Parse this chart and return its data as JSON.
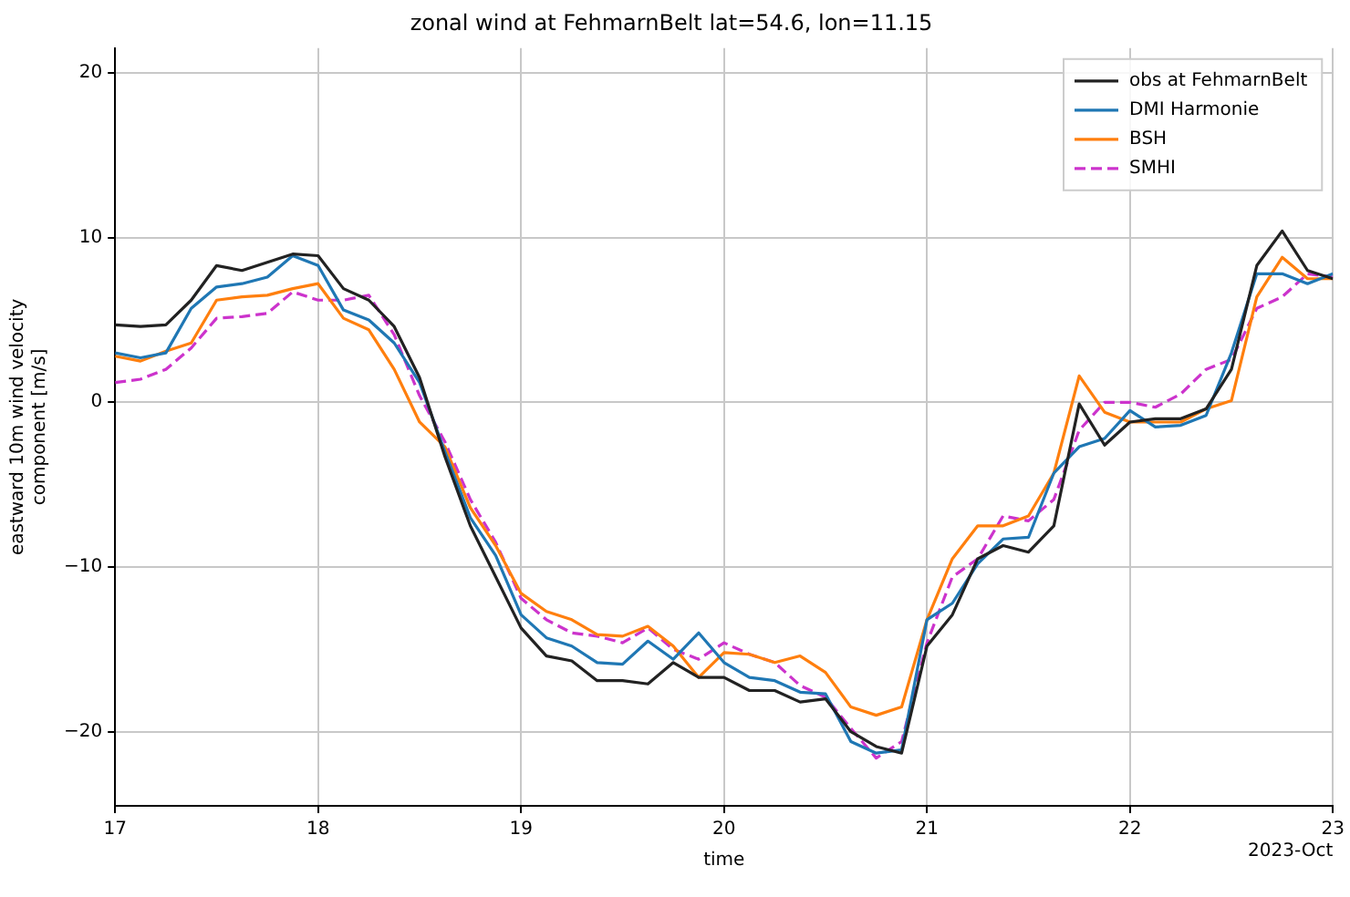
{
  "chart_data": {
    "type": "line",
    "title": "zonal wind at FehmarnBelt lat=54.6, lon=11.15",
    "xlabel": "time",
    "ylabel": "eastward 10m wind velocity\ncomponent [m/s]",
    "annotations": [
      "2023-Oct"
    ],
    "x": [
      17,
      17.125,
      17.25,
      17.375,
      17.5,
      17.625,
      17.75,
      17.875,
      18,
      18.125,
      18.25,
      18.375,
      18.5,
      18.625,
      18.75,
      18.875,
      19,
      19.125,
      19.25,
      19.375,
      19.5,
      19.625,
      19.75,
      19.875,
      20,
      20.125,
      20.25,
      20.375,
      20.5,
      20.625,
      20.75,
      20.875,
      21,
      21.125,
      21.25,
      21.375,
      21.5,
      21.625,
      21.75,
      21.875,
      22,
      22.125,
      22.25,
      22.375,
      22.5,
      22.625,
      22.75,
      22.875,
      23
    ],
    "series": [
      {
        "name": "obs at FehmarnBelt",
        "color": "#222222",
        "line_style": "solid",
        "values": [
          4.7,
          4.6,
          4.7,
          6.2,
          8.3,
          8.0,
          8.5,
          9.0,
          8.9,
          6.9,
          6.2,
          4.6,
          1.5,
          -3.3,
          -7.5,
          -10.6,
          -13.7,
          -15.4,
          -15.7,
          -16.9,
          -16.9,
          -17.1,
          -15.8,
          -16.7,
          -16.7,
          -17.5,
          -17.5,
          -18.2,
          -18.0,
          -20.0,
          -20.9,
          -21.3,
          -14.8,
          -12.9,
          -9.5,
          -8.7,
          -9.1,
          -7.5,
          -0.1,
          -2.6,
          -1.2,
          -1.0,
          -1.0,
          -0.4,
          2.0,
          8.3,
          10.4,
          8.0,
          7.5
        ]
      },
      {
        "name": "DMI Harmonie",
        "color": "#1f77b4",
        "line_style": "solid",
        "values": [
          3.0,
          2.7,
          3.0,
          5.7,
          7.0,
          7.2,
          7.6,
          8.9,
          8.3,
          5.6,
          5.0,
          3.6,
          1.2,
          -3.0,
          -7.0,
          -9.3,
          -12.9,
          -14.3,
          -14.8,
          -15.8,
          -15.9,
          -14.5,
          -15.6,
          -14.0,
          -15.8,
          -16.7,
          -16.9,
          -17.6,
          -17.7,
          -20.6,
          -21.3,
          -21.1,
          -13.2,
          -12.2,
          -9.8,
          -8.3,
          -8.2,
          -4.3,
          -2.7,
          -2.2,
          -0.5,
          -1.5,
          -1.4,
          -0.8,
          3.0,
          7.8,
          7.8,
          7.2,
          7.8
        ]
      },
      {
        "name": "BSH",
        "color": "#ff7f0e",
        "line_style": "solid",
        "values": [
          2.8,
          2.5,
          3.1,
          3.6,
          6.2,
          6.4,
          6.5,
          6.9,
          7.2,
          5.1,
          4.4,
          2.0,
          -1.2,
          -2.7,
          -6.4,
          -8.7,
          -11.6,
          -12.7,
          -13.2,
          -14.1,
          -14.2,
          -13.6,
          -14.8,
          -16.7,
          -15.2,
          -15.3,
          -15.8,
          -15.4,
          -16.4,
          -18.5,
          -19.0,
          -18.5,
          -13.2,
          -9.5,
          -7.5,
          -7.5,
          -6.9,
          -4.3,
          1.6,
          -0.6,
          -1.2,
          -1.2,
          -1.2,
          -0.4,
          0.1,
          6.4,
          8.8,
          7.5,
          7.5
        ]
      },
      {
        "name": "SMHI",
        "color": "#cc33cc",
        "line_style": "dashed",
        "values": [
          1.2,
          1.4,
          2.0,
          3.3,
          5.1,
          5.2,
          5.4,
          6.7,
          6.2,
          6.2,
          6.5,
          4.1,
          0.4,
          -2.4,
          -5.9,
          -8.5,
          -11.9,
          -13.2,
          -14.0,
          -14.2,
          -14.6,
          -13.7,
          -15.0,
          -15.6,
          -14.6,
          -15.3,
          -15.8,
          -17.2,
          -17.9,
          -19.8,
          -21.6,
          -20.6,
          -14.6,
          -10.6,
          -9.5,
          -6.9,
          -7.2,
          -5.9,
          -1.7,
          0.0,
          0.0,
          -0.3,
          0.5,
          2.0,
          2.6,
          5.7,
          6.4,
          7.8,
          7.6
        ]
      }
    ],
    "xlim": [
      17,
      23
    ],
    "xticks": [
      17,
      18,
      19,
      20,
      21,
      22,
      23
    ],
    "ylim": [
      -24.5,
      21.5
    ],
    "yticks": [
      -20,
      -10,
      0,
      10,
      20
    ],
    "grid": true,
    "legend": "top right",
    "marker": "none"
  }
}
